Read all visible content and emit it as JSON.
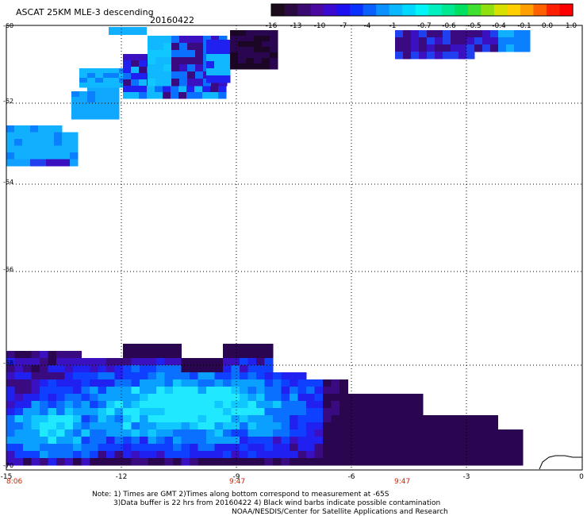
{
  "header": {
    "product": "ASCAT 25KM MLE-3 descending",
    "date": "20160422"
  },
  "colorbar": {
    "colors": [
      "#1a0a1a",
      "#2a0a40",
      "#3a0a70",
      "#4a0aa0",
      "#3a0ad0",
      "#1a10f0",
      "#0a30ff",
      "#0a60ff",
      "#0a90ff",
      "#0ab8ff",
      "#00d8ff",
      "#00f4f8",
      "#00f0c0",
      "#00e890",
      "#00e060",
      "#40e030",
      "#90e010",
      "#d8e000",
      "#ffd000",
      "#ffa000",
      "#ff6000",
      "#ff2000",
      "#ff0000"
    ],
    "tick_labels": [
      "-16",
      "-13",
      "-10",
      "-7",
      "-4",
      "-1",
      "-0.7",
      "-0.6",
      "-0.5",
      "-0.4",
      "-0.1",
      "0.0",
      "1.0"
    ]
  },
  "map": {
    "lon_min": -15,
    "lon_max": 0,
    "lat_top": -60,
    "lat_bottom": -70,
    "lon_ticks": [
      "-15",
      "-12",
      "-9",
      "-6",
      "-3",
      "0"
    ],
    "lat_ticks": [
      "-60",
      "-62",
      "-64",
      "-66",
      "-68",
      "-70"
    ],
    "time_labels": [
      "8:06",
      "9:47",
      "9:47"
    ],
    "grid": true
  },
  "notes": {
    "line1": "Note: 1) Times are GMT 2)Times along bottom correspond to measurement at -65S",
    "line2": "3)Data buffer is 22 hrs from 20160422 4) Black wind barbs indicate possible contamination",
    "line3": "NOAA/NESDIS/Center for Satellite Applications and Research"
  }
}
